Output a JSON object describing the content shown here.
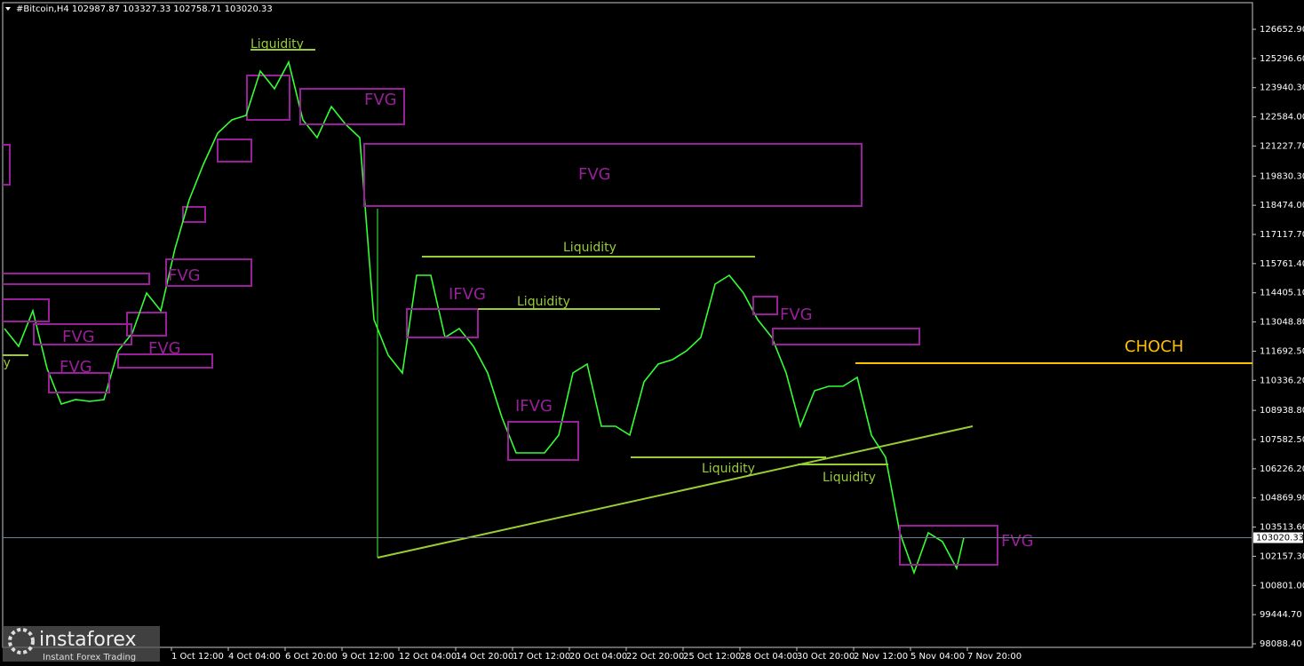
{
  "chart_data": {
    "type": "line",
    "title": "#Bitcoin,H4  102987.87 103327.33 102758.71 103020.33",
    "x": [
      "23 Sep 16:00",
      "24 Sep 08:00",
      "25 Sep 00:00",
      "25 Sep 16:00",
      "26 Sep 08:00",
      "27 Sep 00:00",
      "27 Sep 16:00",
      "28 Sep 08:00",
      "29 Sep 00:00",
      "29 Sep 16:00",
      "30 Sep 08:00",
      "1 Oct 00:00",
      "1 Oct 16:00",
      "2 Oct 08:00",
      "3 Oct 00:00",
      "3 Oct 16:00",
      "4 Oct 08:00",
      "5 Oct 00:00",
      "5 Oct 16:00",
      "6 Oct 08:00",
      "7 Oct 00:00",
      "7 Oct 16:00",
      "8 Oct 08:00",
      "9 Oct 00:00",
      "9 Oct 16:00",
      "10 Oct 08:00",
      "11 Oct 00:00",
      "11 Oct 16:00",
      "12 Oct 08:00",
      "13 Oct 00:00",
      "13 Oct 16:00",
      "14 Oct 08:00",
      "15 Oct 00:00",
      "15 Oct 16:00",
      "16 Oct 08:00",
      "17 Oct 00:00",
      "17 Oct 16:00",
      "18 Oct 08:00",
      "19 Oct 00:00",
      "19 Oct 16:00",
      "20 Oct 08:00",
      "21 Oct 00:00",
      "21 Oct 16:00",
      "22 Oct 08:00",
      "23 Oct 00:00",
      "23 Oct 16:00",
      "24 Oct 08:00",
      "25 Oct 00:00",
      "25 Oct 16:00",
      "26 Oct 08:00",
      "27 Oct 00:00",
      "27 Oct 16:00",
      "28 Oct 08:00",
      "29 Oct 00:00",
      "29 Oct 16:00",
      "30 Oct 08:00",
      "31 Oct 00:00",
      "31 Oct 16:00",
      "1 Nov 08:00",
      "2 Nov 00:00",
      "2 Nov 16:00",
      "3 Nov 08:00",
      "4 Nov 00:00",
      "4 Nov 16:00",
      "5 Nov 08:00",
      "6 Nov 00:00",
      "6 Nov 16:00",
      "7 Nov 08:00",
      "7 Nov 16:00"
    ],
    "series": [
      {
        "name": "#Bitcoin",
        "color": "#33ff33",
        "values": [
          112742,
          111917,
          113568,
          110885,
          109234,
          109440,
          109357,
          109440,
          111710,
          112536,
          114393,
          113568,
          116457,
          118727,
          120379,
          121823,
          122442,
          122649,
          124713,
          123887,
          125126,
          122442,
          121617,
          123062,
          122236,
          121617,
          113155,
          111504,
          110678,
          115219,
          115219,
          112329,
          112742,
          111917,
          110678,
          108614,
          106963,
          106963,
          106963,
          107789,
          110678,
          111091,
          108202,
          108202,
          107789,
          110265,
          111091,
          111297,
          111710,
          112329,
          114806,
          115219,
          114393,
          113155,
          112329,
          110678,
          108202,
          109853,
          110059,
          110059,
          110472,
          107789,
          106757,
          103248,
          101391,
          103248,
          102835,
          101597,
          103020.33
        ]
      }
    ],
    "last_price": 103020.33,
    "ylim": [
      97387,
      128015
    ],
    "yticks": [
      {
        "value": 126652.9,
        "label": "126652.90"
      },
      {
        "value": 125296.6,
        "label": "125296.60"
      },
      {
        "value": 123940.3,
        "label": "123940.30"
      },
      {
        "value": 122584,
        "label": "122584.00"
      },
      {
        "value": 121227.7,
        "label": "121227.70"
      },
      {
        "value": 119830.3,
        "label": "119830.30"
      },
      {
        "value": 118474,
        "label": "118474.00"
      },
      {
        "value": 117117.7,
        "label": "117117.70"
      },
      {
        "value": 115761.4,
        "label": "115761.40"
      },
      {
        "value": 114405.1,
        "label": "114405.10"
      },
      {
        "value": 113048.8,
        "label": "113048.80"
      },
      {
        "value": 111692.5,
        "label": "111692.50"
      },
      {
        "value": 110336.2,
        "label": "110336.20"
      },
      {
        "value": 108938.8,
        "label": "108938.80"
      },
      {
        "value": 107582.5,
        "label": "107582.50"
      },
      {
        "value": 106226.2,
        "label": "106226.20"
      },
      {
        "value": 104869.9,
        "label": "104869.90"
      },
      {
        "value": 103513.6,
        "label": "103513.60"
      },
      {
        "value": 102157.3,
        "label": "102157.30"
      },
      {
        "value": 100801,
        "label": "100801.00"
      },
      {
        "value": 99444.7,
        "label": "99444.70"
      },
      {
        "value": 98088.4,
        "label": "98088.40"
      }
    ],
    "xticks": [
      "1 Oct 12:00",
      "4 Oct 04:00",
      "6 Oct 20:00",
      "9 Oct 12:00",
      "12 Oct 04:00",
      "14 Oct 20:00",
      "17 Oct 12:00",
      "20 Oct 04:00",
      "22 Oct 20:00",
      "25 Oct 12:00",
      "28 Oct 04:00",
      "30 Oct 20:00",
      "2 Nov 12:00",
      "5 Nov 04:00",
      "7 Nov 20:00"
    ],
    "annotations": [
      "Liquidity",
      "FVG",
      "FVG",
      "Liquidity",
      "IFVG",
      "Liquidity",
      "FVG",
      "CHOCH",
      "IFVG",
      "Liquidity",
      "Liquidity",
      "FVG",
      "FVG",
      "FVG",
      "FVG",
      "FVG",
      "Liquidity"
    ],
    "watermark": {
      "brand": "instaforex",
      "tagline": "Instant Forex Trading"
    }
  }
}
